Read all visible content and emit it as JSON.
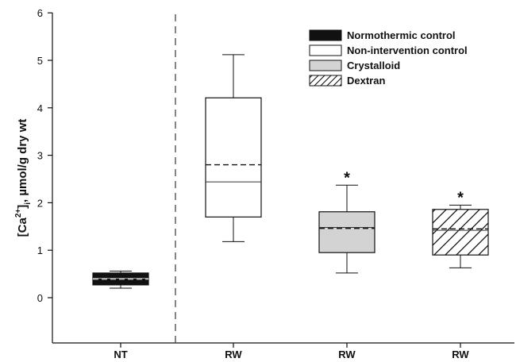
{
  "chart_data": {
    "type": "box",
    "ylabel": {
      "pre": "[Ca",
      "sup": "2+",
      "mid": "]",
      "sub": "i",
      "post": ", µmol/g dry wt"
    },
    "ylim": [
      -0.9,
      6
    ],
    "yticks": [
      0,
      1,
      2,
      3,
      4,
      5,
      6
    ],
    "categories": [
      "NT",
      "RW",
      "RW",
      "RW"
    ],
    "separator_after_category": 0,
    "series": [
      {
        "name": "Normothermic control",
        "fill": "#111111",
        "pattern": "solid",
        "whisker_low": 0.2,
        "q1": 0.27,
        "median": 0.41,
        "mean": 0.39,
        "q3": 0.52,
        "whisker_high": 0.56,
        "annotation": ""
      },
      {
        "name": "Non-intervention control",
        "fill": "#ffffff",
        "pattern": "none",
        "whisker_low": 1.18,
        "q1": 1.7,
        "median": 2.44,
        "mean": 2.8,
        "q3": 4.21,
        "whisker_high": 5.12,
        "annotation": ""
      },
      {
        "name": "Crystalloid",
        "fill": "#d3d3d3",
        "pattern": "solid",
        "whisker_low": 0.52,
        "q1": 0.95,
        "median": 1.48,
        "mean": 1.46,
        "q3": 1.81,
        "whisker_high": 2.37,
        "annotation": "*"
      },
      {
        "name": "Dextran",
        "fill": "#ffffff",
        "pattern": "hatch",
        "whisker_low": 0.63,
        "q1": 0.9,
        "median": 1.42,
        "mean": 1.45,
        "q3": 1.86,
        "whisker_high": 1.95,
        "annotation": "*"
      }
    ],
    "legend": {
      "position": "top-right",
      "entries": [
        "Normothermic control",
        "Non-intervention control",
        "Crystalloid",
        "Dextran"
      ]
    },
    "grid": false
  }
}
